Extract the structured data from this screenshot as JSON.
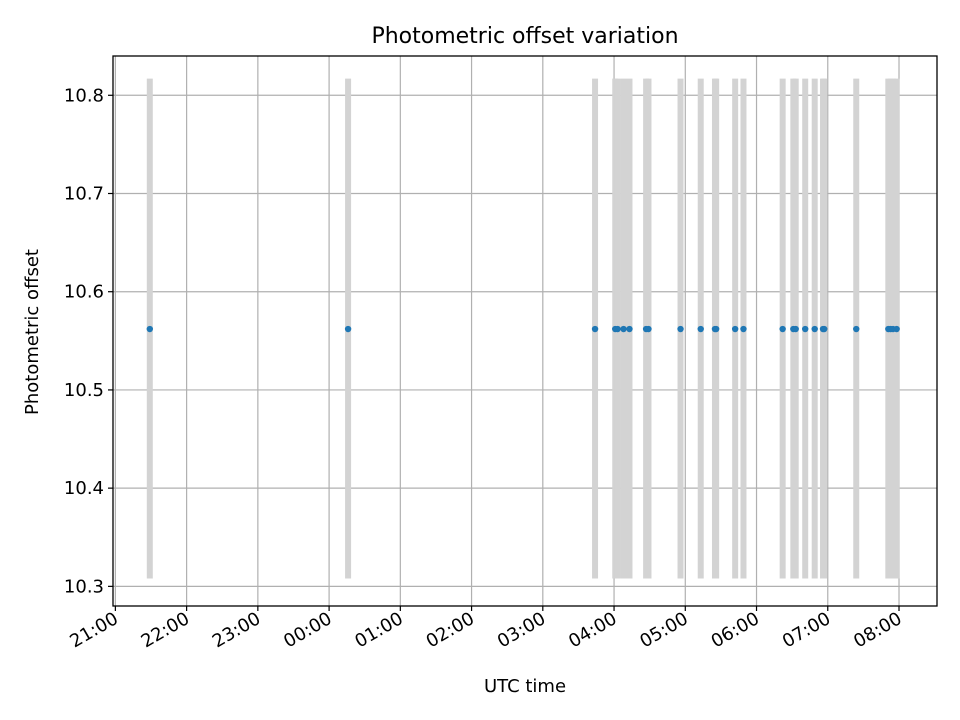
{
  "chart_data": {
    "type": "scatter",
    "title": "Photometric offset variation",
    "xlabel": "UTC time",
    "ylabel": "Photometric offset",
    "xlim": [
      "20:58",
      "08:32"
    ],
    "ylim": [
      10.28,
      10.84
    ],
    "x_is_time": true,
    "x_ticks": [
      "21:00",
      "22:00",
      "23:00",
      "00:00",
      "01:00",
      "02:00",
      "03:00",
      "04:00",
      "05:00",
      "06:00",
      "07:00",
      "08:00"
    ],
    "y_ticks": [
      "10.3",
      "10.4",
      "10.5",
      "10.6",
      "10.7",
      "10.8"
    ],
    "grid": true,
    "legend": "none",
    "error_bar_color": "#d3d3d3",
    "point_color": "#1f77b4",
    "points": [
      {
        "x": "21:29",
        "y": 10.562,
        "ylow": 10.308,
        "yhigh": 10.817
      },
      {
        "x": "00:16",
        "y": 10.562,
        "ylow": 10.308,
        "yhigh": 10.817
      },
      {
        "x": "03:44",
        "y": 10.562,
        "ylow": 10.308,
        "yhigh": 10.817
      },
      {
        "x": "04:01",
        "y": 10.562,
        "ylow": 10.308,
        "yhigh": 10.817
      },
      {
        "x": "04:03",
        "y": 10.562,
        "ylow": 10.308,
        "yhigh": 10.817
      },
      {
        "x": "04:08",
        "y": 10.562,
        "ylow": 10.308,
        "yhigh": 10.817
      },
      {
        "x": "04:13",
        "y": 10.562,
        "ylow": 10.308,
        "yhigh": 10.817
      },
      {
        "x": "04:27",
        "y": 10.562,
        "ylow": 10.308,
        "yhigh": 10.817
      },
      {
        "x": "04:29",
        "y": 10.562,
        "ylow": 10.308,
        "yhigh": 10.817
      },
      {
        "x": "04:56",
        "y": 10.562,
        "ylow": 10.308,
        "yhigh": 10.817
      },
      {
        "x": "05:13",
        "y": 10.562,
        "ylow": 10.308,
        "yhigh": 10.817
      },
      {
        "x": "05:25",
        "y": 10.562,
        "ylow": 10.308,
        "yhigh": 10.817
      },
      {
        "x": "05:26",
        "y": 10.562,
        "ylow": 10.308,
        "yhigh": 10.817
      },
      {
        "x": "05:42",
        "y": 10.562,
        "ylow": 10.308,
        "yhigh": 10.817
      },
      {
        "x": "05:49",
        "y": 10.562,
        "ylow": 10.308,
        "yhigh": 10.817
      },
      {
        "x": "06:22",
        "y": 10.562,
        "ylow": 10.308,
        "yhigh": 10.817
      },
      {
        "x": "06:31",
        "y": 10.562,
        "ylow": 10.308,
        "yhigh": 10.817
      },
      {
        "x": "06:33",
        "y": 10.562,
        "ylow": 10.308,
        "yhigh": 10.817
      },
      {
        "x": "06:41",
        "y": 10.562,
        "ylow": 10.308,
        "yhigh": 10.817
      },
      {
        "x": "06:49",
        "y": 10.562,
        "ylow": 10.308,
        "yhigh": 10.817
      },
      {
        "x": "06:56",
        "y": 10.562,
        "ylow": 10.308,
        "yhigh": 10.817
      },
      {
        "x": "06:57",
        "y": 10.562,
        "ylow": 10.308,
        "yhigh": 10.817
      },
      {
        "x": "07:24",
        "y": 10.562,
        "ylow": 10.308,
        "yhigh": 10.817
      },
      {
        "x": "07:51",
        "y": 10.562,
        "ylow": 10.308,
        "yhigh": 10.817
      },
      {
        "x": "07:53",
        "y": 10.562,
        "ylow": 10.308,
        "yhigh": 10.817
      },
      {
        "x": "07:55",
        "y": 10.562,
        "ylow": 10.308,
        "yhigh": 10.817
      },
      {
        "x": "07:58",
        "y": 10.562,
        "ylow": 10.308,
        "yhigh": 10.817
      }
    ]
  }
}
